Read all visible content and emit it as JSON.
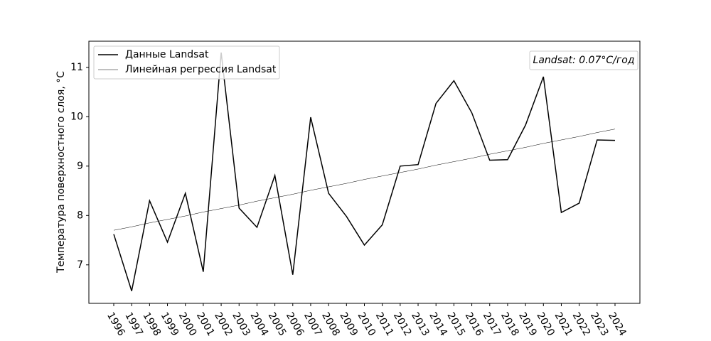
{
  "chart_data": {
    "type": "line",
    "y_label": "Температура поверхностного слоя, °C",
    "annotation": "Landsat: 0.07°C/год",
    "categories": [
      "1996",
      "1997",
      "1998",
      "1999",
      "2000",
      "2001",
      "2002",
      "2003",
      "2004",
      "2005",
      "2006",
      "2007",
      "2008",
      "2009",
      "2010",
      "2011",
      "2012",
      "2013",
      "2014",
      "2015",
      "2016",
      "2017",
      "2018",
      "2019",
      "2020",
      "2021",
      "2022",
      "2023",
      "2024"
    ],
    "series": [
      {
        "name": "Данные Landsat",
        "color": "#000000",
        "width": 1.5,
        "values": [
          7.62,
          6.47,
          8.3,
          7.46,
          8.45,
          6.86,
          11.3,
          8.15,
          7.76,
          8.81,
          6.8,
          9.99,
          8.45,
          7.98,
          7.4,
          7.81,
          9.0,
          9.03,
          10.27,
          10.73,
          10.08,
          9.12,
          9.13,
          9.83,
          10.81,
          8.06,
          8.25,
          9.53,
          9.52
        ]
      },
      {
        "name": "Линейная регрессия Landsat",
        "color": "#000000",
        "width": 0.5,
        "values": [
          7.7,
          7.77,
          7.85,
          7.92,
          7.99,
          8.07,
          8.14,
          8.21,
          8.29,
          8.36,
          8.43,
          8.51,
          8.58,
          8.65,
          8.73,
          8.8,
          8.87,
          8.94,
          9.02,
          9.09,
          9.16,
          9.24,
          9.31,
          9.38,
          9.46,
          9.53,
          9.6,
          9.68,
          9.75
        ]
      }
    ],
    "ylim": [
      6.22,
      11.53
    ],
    "yticks": [
      7,
      8,
      9,
      10,
      11
    ],
    "legend": "upper left",
    "grid": false
  }
}
